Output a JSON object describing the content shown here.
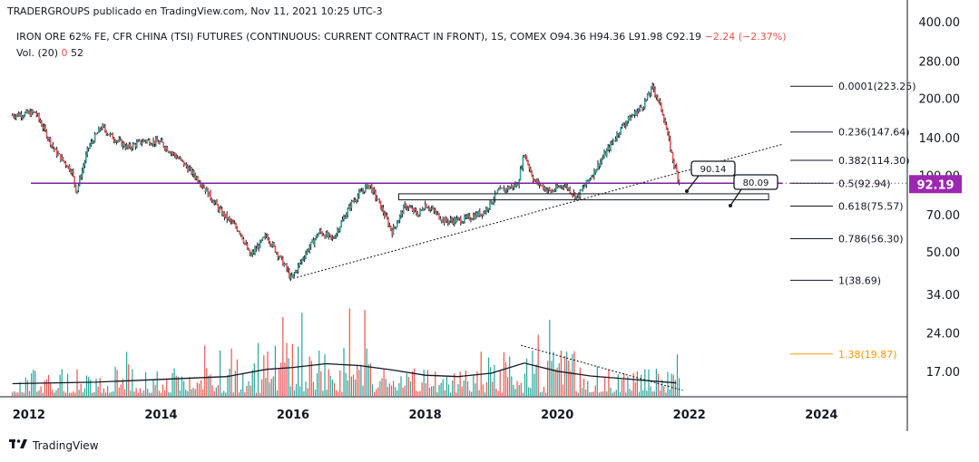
{
  "publisher": "TRADERGROUPS publicado en TradingView.com, Nov 11, 2021 10:25 UTC-3",
  "legend": {
    "title": "IRON ORE 62% FE, CFR CHINA (TSI) FUTURES (CONTINUOUS: CURRENT CONTRACT IN FRONT), 1S, COMEX",
    "open": "O94.36",
    "high": "H94.36",
    "low": "L91.98",
    "close": "C92.19",
    "change": "−2.24 (−2.37%)",
    "volume_label": "Vol. (20)",
    "volume_value": "0",
    "volume_ma": "52"
  },
  "footer": {
    "brand": "TradingView"
  },
  "colors": {
    "up": "#26a69a",
    "down": "#ef5350",
    "price_badge": "#9c27b0",
    "fib_orange": "#ff9800",
    "purple_line": "#7b1fa2"
  },
  "chart_data": {
    "type": "candlestick",
    "title": "IRON ORE 62% FE, CFR CHINA (TSI) FUTURES (CONTINUOUS: CURRENT CONTRACT IN FRONT), 1S, COMEX",
    "y_scale": "log",
    "ylim": [
      13.5,
      420
    ],
    "xlim": [
      2011.7,
      2025.3
    ],
    "y_ticks": [
      "400.00",
      "280.00",
      "200.00",
      "140.00",
      "100.00",
      "70.00",
      "50.00",
      "34.00",
      "24.00",
      "17.00"
    ],
    "y_tick_values": [
      400,
      280,
      200,
      140,
      100,
      70,
      50,
      34,
      24,
      17
    ],
    "x_ticks": [
      "2012",
      "2014",
      "2016",
      "2018",
      "2020",
      "2022",
      "2024"
    ],
    "x_tick_values": [
      2012,
      2014,
      2016,
      2018,
      2020,
      2022,
      2024
    ],
    "last_price": "92.19",
    "last_price_value": 92.19,
    "price_path": [
      [
        2011.75,
        172
      ],
      [
        2012.1,
        176
      ],
      [
        2012.4,
        124
      ],
      [
        2012.65,
        104
      ],
      [
        2012.72,
        86
      ],
      [
        2012.9,
        128
      ],
      [
        2013.1,
        155
      ],
      [
        2013.25,
        142
      ],
      [
        2013.5,
        128
      ],
      [
        2013.75,
        137
      ],
      [
        2014.0,
        134
      ],
      [
        2014.3,
        114
      ],
      [
        2014.6,
        94
      ],
      [
        2014.9,
        72
      ],
      [
        2015.2,
        60
      ],
      [
        2015.35,
        48
      ],
      [
        2015.6,
        58
      ],
      [
        2015.9,
        43
      ],
      [
        2015.97,
        39
      ],
      [
        2016.2,
        50
      ],
      [
        2016.4,
        60
      ],
      [
        2016.6,
        56
      ],
      [
        2016.9,
        79
      ],
      [
        2017.15,
        92
      ],
      [
        2017.3,
        78
      ],
      [
        2017.5,
        60
      ],
      [
        2017.7,
        76
      ],
      [
        2017.9,
        70
      ],
      [
        2018.0,
        77
      ],
      [
        2018.3,
        66
      ],
      [
        2018.6,
        67
      ],
      [
        2018.9,
        72
      ],
      [
        2019.1,
        86
      ],
      [
        2019.4,
        92
      ],
      [
        2019.5,
        122
      ],
      [
        2019.65,
        95
      ],
      [
        2019.9,
        86
      ],
      [
        2020.1,
        92
      ],
      [
        2020.3,
        82
      ],
      [
        2020.5,
        98
      ],
      [
        2020.75,
        124
      ],
      [
        2021.0,
        158
      ],
      [
        2021.3,
        188
      ],
      [
        2021.45,
        222
      ],
      [
        2021.6,
        175
      ],
      [
        2021.75,
        115
      ],
      [
        2021.86,
        92
      ]
    ],
    "volume_label": "Vol. (20)",
    "volume_ma_path": [
      [
        2011.75,
        15.2
      ],
      [
        2013.0,
        15.4
      ],
      [
        2014.0,
        15.8
      ],
      [
        2015.0,
        16.2
      ],
      [
        2015.6,
        17.3
      ],
      [
        2016.0,
        17.6
      ],
      [
        2016.5,
        18.2
      ],
      [
        2017.0,
        17.9
      ],
      [
        2017.5,
        17.2
      ],
      [
        2018.0,
        16.4
      ],
      [
        2018.5,
        16.2
      ],
      [
        2019.0,
        16.7
      ],
      [
        2019.5,
        18.3
      ],
      [
        2020.0,
        17.0
      ],
      [
        2020.5,
        16.3
      ],
      [
        2021.0,
        15.9
      ],
      [
        2021.8,
        15.3
      ]
    ],
    "fibonacci": [
      {
        "level": "0.0001",
        "price": "223.25",
        "label": "0.0001(223.25)",
        "value": 223.25
      },
      {
        "level": "0.236",
        "price": "147.64",
        "label": "0.236(147.64)",
        "value": 147.64
      },
      {
        "level": "0.382",
        "price": "114.30",
        "label": "0.382(114.30)",
        "value": 114.3
      },
      {
        "level": "0.5",
        "price": "92.94",
        "label": "0.5(92.94)",
        "value": 92.94
      },
      {
        "level": "0.618",
        "price": "75.57",
        "label": "0.618(75.57)",
        "value": 75.57
      },
      {
        "level": "0.786",
        "price": "56.30",
        "label": "0.786(56.30)",
        "value": 56.3
      },
      {
        "level": "1",
        "price": "38.69",
        "label": "1(38.69)",
        "value": 38.69
      },
      {
        "level": "1.38",
        "price": "19.87",
        "label": "1.38(19.87)",
        "value": 19.87
      }
    ],
    "annotations": [
      {
        "text": "90.14",
        "value": 90.14
      },
      {
        "text": "80.09",
        "value": 80.09
      }
    ],
    "horizontal_line": {
      "value": 92.94
    },
    "support_zone": {
      "x_from": 2017.6,
      "x_to": 2023.2,
      "from": 80.0,
      "to": 84.5
    },
    "trendline": {
      "from": [
        2015.95,
        39
      ],
      "to": [
        2023.4,
        132
      ]
    },
    "volume_trendline": {
      "from": [
        2019.45,
        21.5
      ],
      "to": [
        2021.9,
        14.3
      ]
    }
  }
}
